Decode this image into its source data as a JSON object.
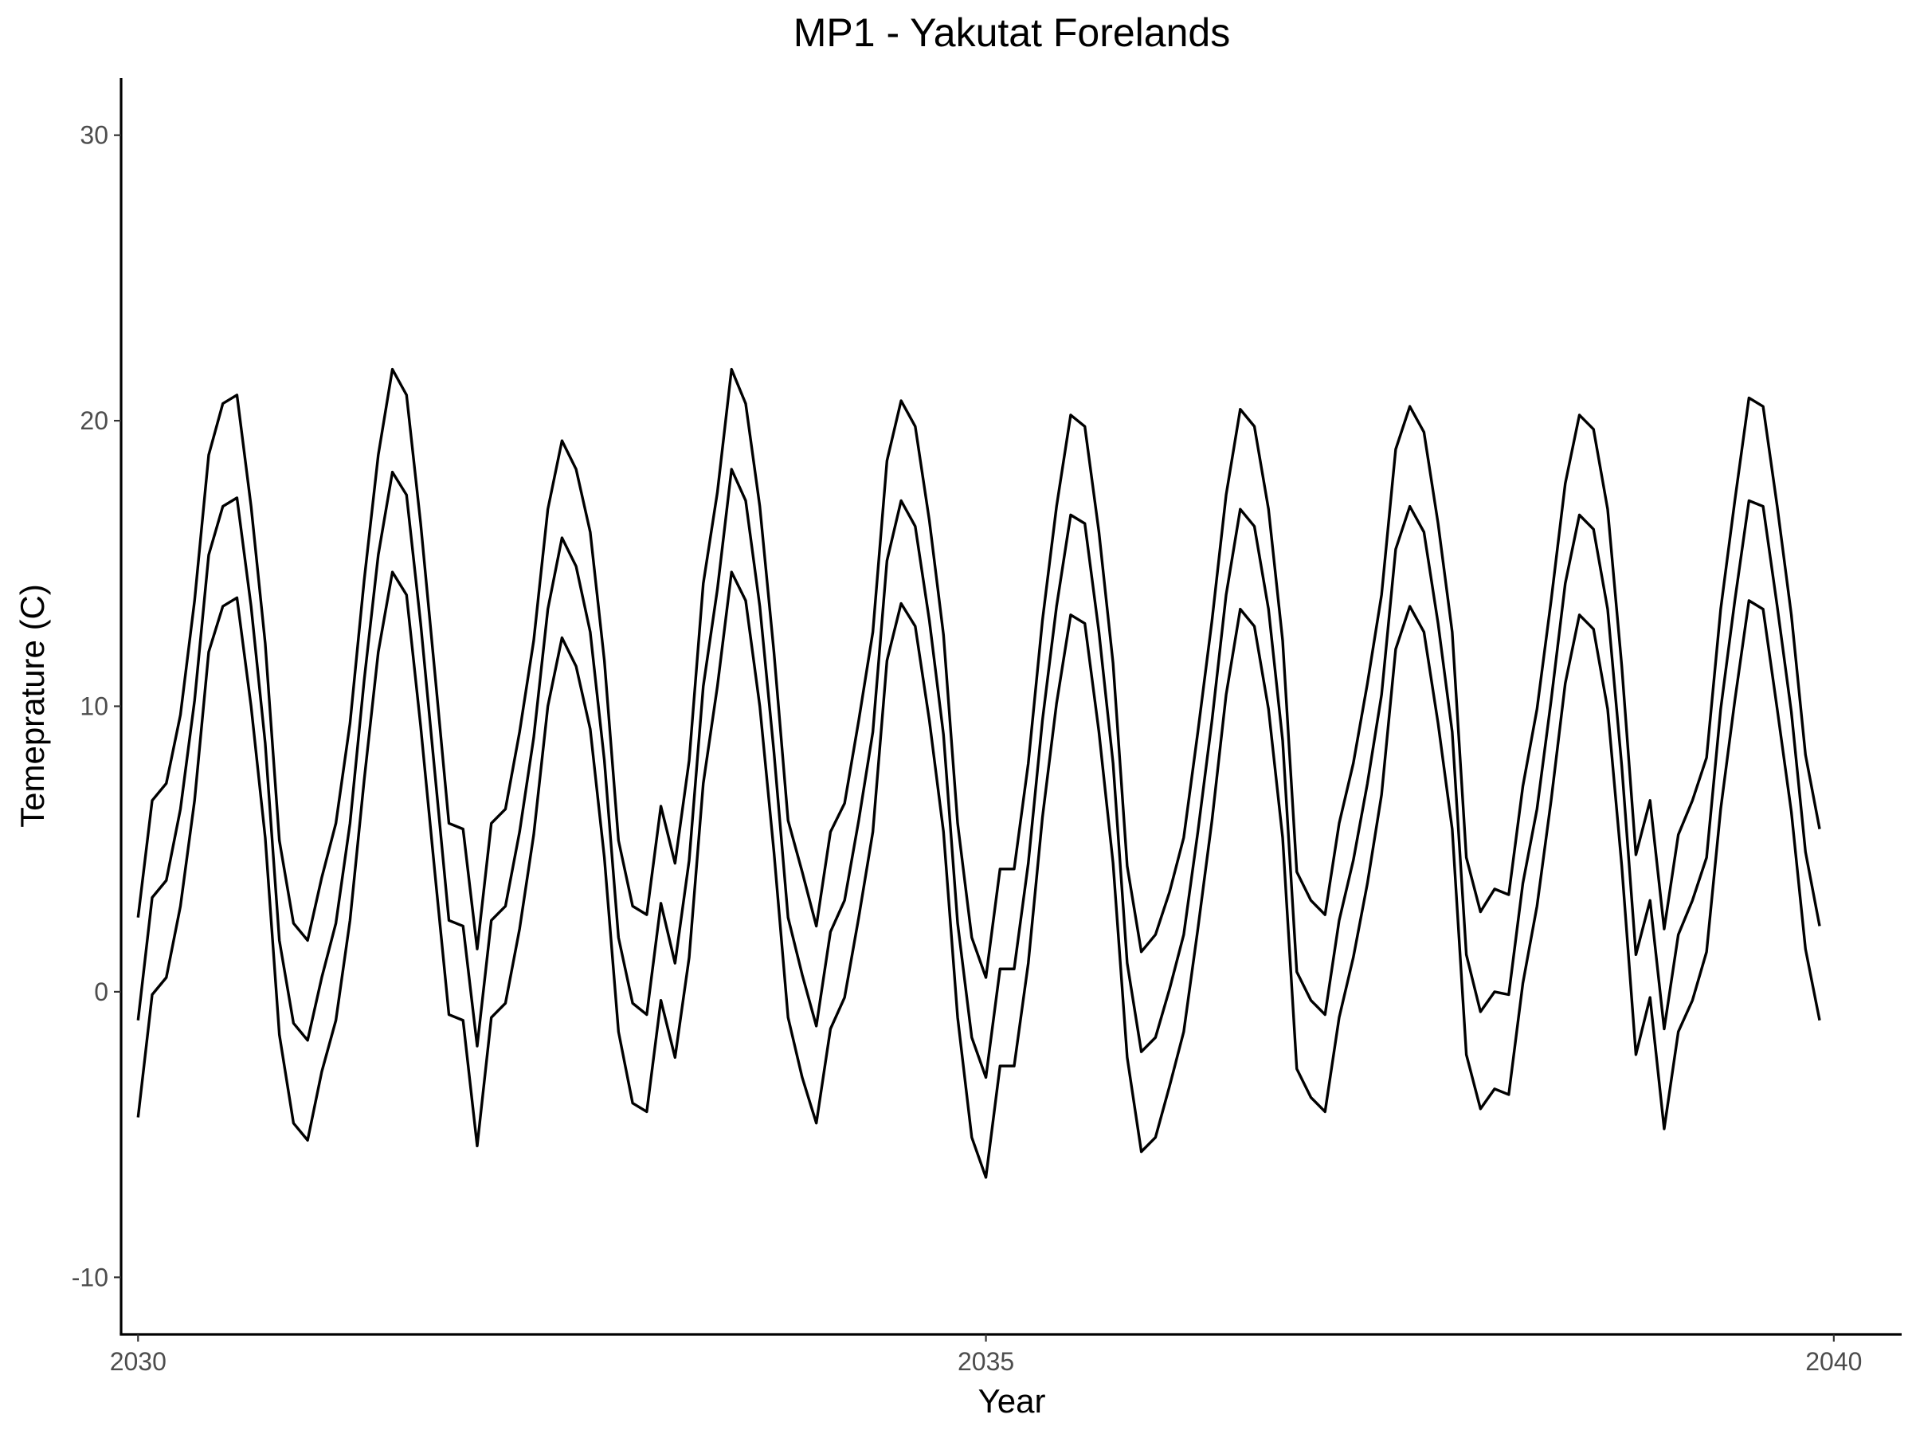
{
  "chart_data": {
    "type": "line",
    "title": "MP1 - Yakutat Forelands",
    "xlabel": "Year",
    "ylabel": "Temeprature (C)",
    "xlim": [
      2029.9,
      2040.4
    ],
    "ylim": [
      -12,
      32
    ],
    "x_ticks": [
      2030,
      2035,
      2040
    ],
    "x_tick_labels": [
      "2030",
      "2035",
      "2040"
    ],
    "y_ticks": [
      -10,
      0,
      10,
      20,
      30
    ],
    "y_tick_labels": [
      "-10",
      "0",
      "10",
      "20",
      "30"
    ],
    "grid": false,
    "legend": "none",
    "line_color": "#000000",
    "x_start": 2030,
    "x_step": 0.08333,
    "series": [
      {
        "values": [
          2.6,
          6.7,
          7.3,
          9.7,
          13.7,
          18.8,
          20.6,
          20.9,
          17.0,
          12.2,
          5.3,
          2.4,
          1.8,
          4.0,
          5.9,
          9.4,
          14.4,
          18.8,
          21.8,
          20.9,
          16.4,
          11.2,
          5.9,
          5.7,
          1.5,
          5.9,
          6.4,
          9.1,
          12.3,
          16.9,
          19.3,
          18.3,
          16.1,
          11.6,
          5.3,
          3.0,
          2.7,
          6.5,
          4.5,
          8.1,
          14.3,
          17.5,
          21.8,
          20.6,
          17.0,
          11.9,
          6.0,
          4.2,
          2.3,
          5.6,
          6.6,
          9.5,
          12.6,
          18.6,
          20.7,
          19.8,
          16.5,
          12.5,
          5.9,
          1.9,
          0.5,
          4.3,
          4.3,
          8.0,
          13.0,
          17.0,
          20.2,
          19.8,
          16.1,
          11.5,
          4.4,
          1.4,
          2.0,
          3.5,
          5.4,
          9.1,
          13.0,
          17.4,
          20.4,
          19.8,
          16.9,
          12.3,
          4.2,
          3.2,
          2.7,
          5.9,
          8.0,
          10.8,
          13.9,
          19.0,
          20.5,
          19.6,
          16.4,
          12.6,
          4.7,
          2.8,
          3.6,
          3.4,
          7.2,
          9.9,
          13.7,
          17.8,
          20.2,
          19.7,
          16.9,
          11.4,
          4.8,
          6.7,
          2.2,
          5.5,
          6.7,
          8.2,
          13.4,
          17.2,
          20.8,
          20.5,
          17.0,
          13.2,
          8.3,
          5.7
        ]
      },
      {
        "values": [
          -1.0,
          3.3,
          3.9,
          6.4,
          10.2,
          15.3,
          17.0,
          17.3,
          13.5,
          8.7,
          1.8,
          -1.1,
          -1.7,
          0.5,
          2.4,
          5.9,
          10.9,
          15.3,
          18.2,
          17.4,
          12.9,
          7.7,
          2.5,
          2.3,
          -1.9,
          2.5,
          3.0,
          5.6,
          8.9,
          13.4,
          15.9,
          14.9,
          12.6,
          8.1,
          1.9,
          -0.4,
          -0.8,
          3.1,
          1.0,
          4.6,
          10.7,
          14.1,
          18.3,
          17.2,
          13.5,
          8.4,
          2.6,
          0.6,
          -1.2,
          2.1,
          3.2,
          6.0,
          9.1,
          15.1,
          17.2,
          16.3,
          13.0,
          9.0,
          2.4,
          -1.6,
          -3.0,
          0.8,
          0.8,
          4.5,
          9.5,
          13.5,
          16.7,
          16.4,
          12.6,
          8.0,
          1.0,
          -2.1,
          -1.6,
          0.1,
          2.0,
          5.6,
          9.5,
          13.9,
          16.9,
          16.3,
          13.4,
          8.8,
          0.7,
          -0.3,
          -0.8,
          2.5,
          4.6,
          7.3,
          10.4,
          15.5,
          17.0,
          16.1,
          12.9,
          9.1,
          1.3,
          -0.7,
          0.0,
          -0.1,
          3.8,
          6.4,
          10.2,
          14.3,
          16.7,
          16.2,
          13.4,
          7.9,
          1.3,
          3.2,
          -1.3,
          2.0,
          3.2,
          4.7,
          9.9,
          13.7,
          17.2,
          17.0,
          13.5,
          9.8,
          4.9,
          2.3
        ]
      },
      {
        "values": [
          -4.4,
          -0.1,
          0.5,
          3.0,
          6.7,
          11.9,
          13.5,
          13.8,
          10.0,
          5.4,
          -1.5,
          -4.6,
          -5.2,
          -2.8,
          -1.0,
          2.5,
          7.4,
          11.9,
          14.7,
          13.9,
          9.3,
          4.2,
          -0.8,
          -1.0,
          -5.4,
          -0.9,
          -0.4,
          2.2,
          5.5,
          10.0,
          12.4,
          11.4,
          9.2,
          4.7,
          -1.4,
          -3.9,
          -4.2,
          -0.3,
          -2.3,
          1.2,
          7.3,
          10.7,
          14.7,
          13.7,
          10.0,
          4.9,
          -0.9,
          -3.0,
          -4.6,
          -1.3,
          -0.2,
          2.6,
          5.6,
          11.6,
          13.6,
          12.8,
          9.5,
          5.6,
          -0.9,
          -5.1,
          -6.5,
          -2.6,
          -2.6,
          1.0,
          6.1,
          10.1,
          13.2,
          12.9,
          9.1,
          4.5,
          -2.3,
          -5.6,
          -5.1,
          -3.3,
          -1.4,
          2.2,
          6.0,
          10.4,
          13.4,
          12.8,
          9.9,
          5.4,
          -2.7,
          -3.7,
          -4.2,
          -0.9,
          1.2,
          3.8,
          6.9,
          12.0,
          13.5,
          12.6,
          9.4,
          5.7,
          -2.2,
          -4.1,
          -3.4,
          -3.6,
          0.3,
          3.0,
          6.7,
          10.8,
          13.2,
          12.7,
          9.9,
          4.4,
          -2.2,
          -0.2,
          -4.8,
          -1.4,
          -0.3,
          1.4,
          6.4,
          10.2,
          13.7,
          13.4,
          9.9,
          6.3,
          1.5,
          -1.0
        ]
      }
    ]
  }
}
